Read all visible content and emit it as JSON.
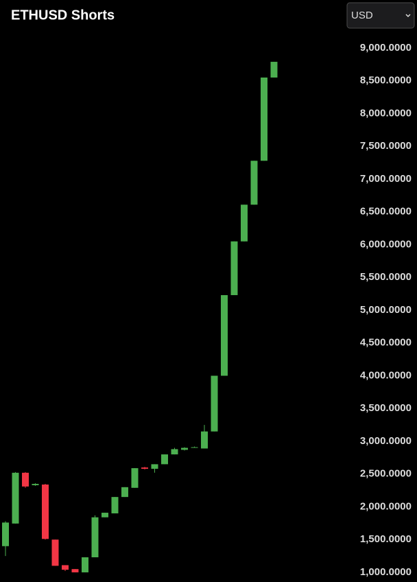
{
  "controls": {
    "currency": "USD"
  },
  "chart_data": {
    "type": "candlestick",
    "title": "ETHUSD Shorts",
    "series": [
      {
        "open": [
          1400,
          1745,
          2520,
          2330,
          2340,
          1500,
          1110,
          1050,
          1000,
          1230,
          1840,
          1900,
          2150,
          2290,
          2600,
          2580,
          2650,
          2800,
          2870,
          2900,
          2890,
          3150,
          4000,
          5230,
          6050,
          6610,
          7280,
          8550
        ],
        "high": [
          1780,
          2530,
          2530,
          2360,
          2350,
          1500,
          1110,
          1050,
          1230,
          1870,
          1910,
          2150,
          2300,
          2590,
          2610,
          2650,
          2800,
          2900,
          2910,
          2920,
          3250,
          4000,
          5230,
          6050,
          6610,
          7280,
          8550,
          8790
        ],
        "low": [
          1250,
          1745,
          2290,
          2320,
          1500,
          1100,
          1020,
          1000,
          1000,
          1230,
          1840,
          1900,
          2150,
          2290,
          2570,
          2520,
          2650,
          2800,
          2860,
          2900,
          2890,
          3150,
          4000,
          5230,
          6050,
          6610,
          7280,
          8550
        ],
        "close": [
          1760,
          2520,
          2310,
          2350,
          1510,
          1100,
          1040,
          1000,
          1230,
          1840,
          1910,
          2150,
          2300,
          2590,
          2580,
          2650,
          2800,
          2880,
          2900,
          2910,
          3150,
          4000,
          5230,
          6050,
          6610,
          7280,
          8550,
          8790
        ]
      }
    ],
    "up_color": "#4caf50",
    "down_color": "#f23645",
    "ylim": [
      853,
      9733
    ],
    "yticks": [
      {
        "value": 1000,
        "label": "1,000.0000"
      },
      {
        "value": 1500,
        "label": "1,500.0000"
      },
      {
        "value": 2000,
        "label": "2,000.0000"
      },
      {
        "value": 2500,
        "label": "2,500.0000"
      },
      {
        "value": 3000,
        "label": "3,000.0000"
      },
      {
        "value": 3500,
        "label": "3,500.0000"
      },
      {
        "value": 4000,
        "label": "4,000.0000"
      },
      {
        "value": 4500,
        "label": "4,500.0000"
      },
      {
        "value": 5000,
        "label": "5,000.0000"
      },
      {
        "value": 5500,
        "label": "5,500.0000"
      },
      {
        "value": 6000,
        "label": "6,000.0000"
      },
      {
        "value": 6500,
        "label": "6,500.0000"
      },
      {
        "value": 7000,
        "label": "7,000.0000"
      },
      {
        "value": 7500,
        "label": "7,500.0000"
      },
      {
        "value": 8000,
        "label": "8,000.0000"
      },
      {
        "value": 8500,
        "label": "8,500.0000"
      },
      {
        "value": 9000,
        "label": "9,000.0000"
      }
    ],
    "grid": false
  }
}
